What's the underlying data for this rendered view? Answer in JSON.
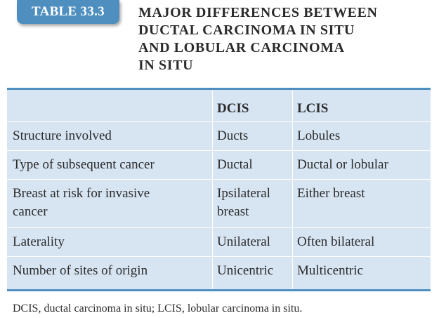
{
  "badge": "TABLE 33.3",
  "title_lines": [
    "MAJOR DIFFERENCES BETWEEN",
    "DUCTAL CARCINOMA IN SITU",
    "AND LOBULAR CARCINOMA",
    "IN SITU"
  ],
  "table": {
    "headers": [
      "",
      "DCIS",
      "LCIS"
    ],
    "rows": [
      [
        "Structure involved",
        "Ducts",
        "Lobules"
      ],
      [
        "Type of subsequent cancer",
        "Ductal",
        "Ductal or lobular"
      ],
      [
        "Breast at risk for invasive cancer",
        "Ipsilateral breast",
        "Either breast"
      ],
      [
        "Laterality",
        "Unilateral",
        "Often bilateral"
      ],
      [
        "Number of sites of origin",
        "Unicentric",
        "Multicentric"
      ]
    ]
  },
  "footnote": "DCIS, ductal carcinoma in situ; LCIS, lobular carcinoma in situ.",
  "colors": {
    "accent": "#4f8fc0",
    "table_bg": "#d7e5f3"
  }
}
